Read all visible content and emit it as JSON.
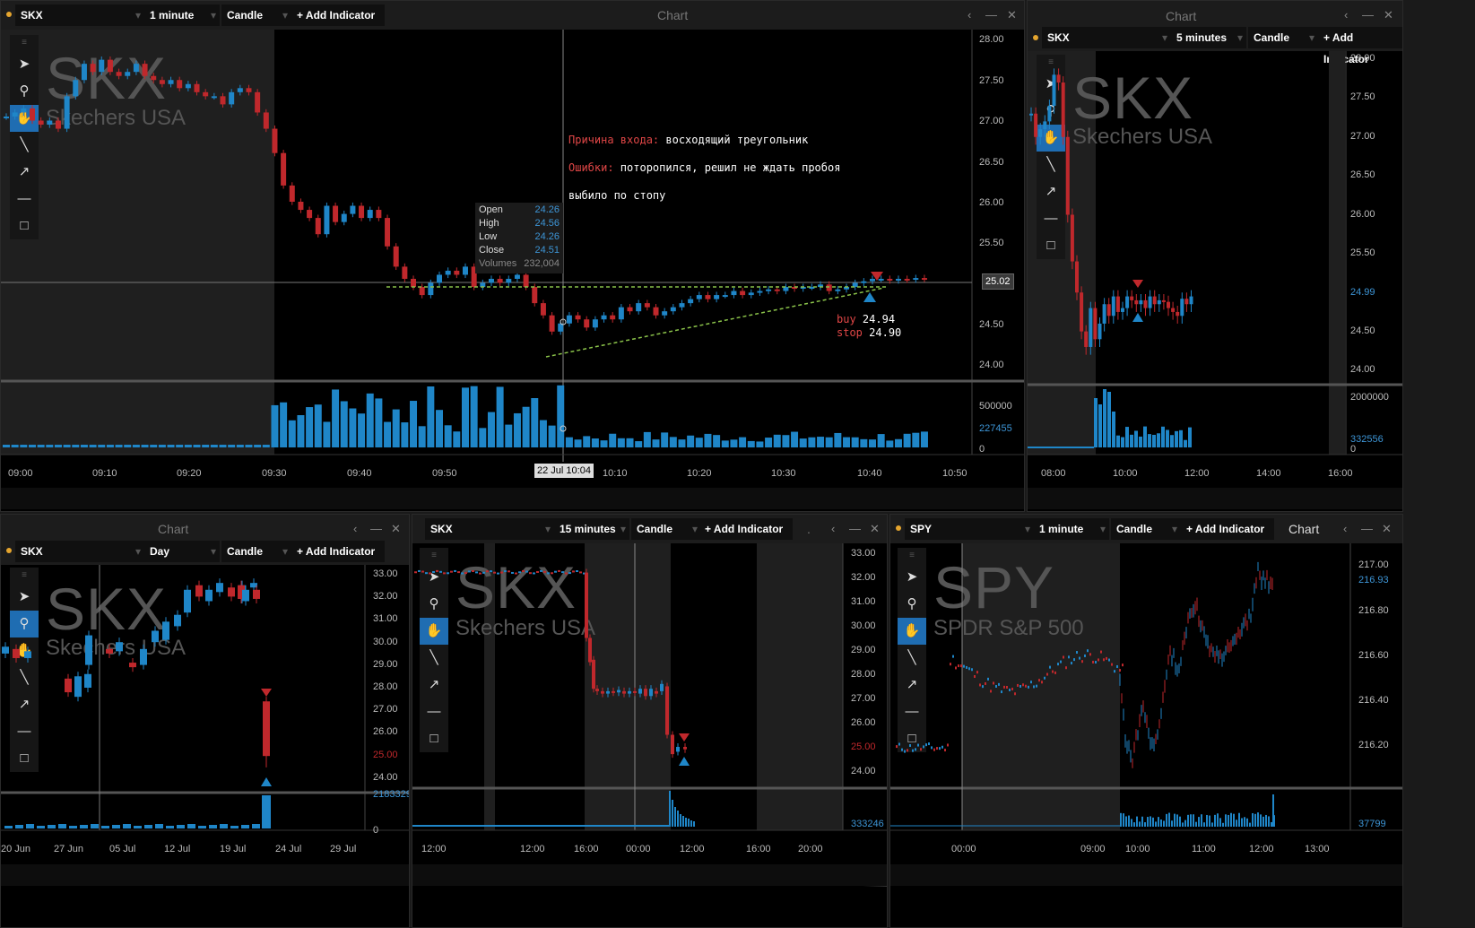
{
  "colors": {
    "up": "#1f86c8",
    "down": "#c0282c",
    "volume": "#1f86c8",
    "accent": "#1f6db2"
  },
  "tools": [
    "grip-icon",
    "pointer-icon",
    "zoom-icon",
    "hand-icon",
    "line-icon",
    "arrow-icon",
    "hline-icon",
    "rect-icon"
  ],
  "p1": {
    "symbol": "SKX",
    "timeframe": "1 minute",
    "chart_type": "Candle",
    "add_indicator": "+ Add Indicator",
    "title": "Chart",
    "ctl": [
      "‹",
      "—",
      "✕"
    ],
    "big_symbol": "SKX",
    "big_name": "Skechers USA",
    "y_labels": [
      "28.00",
      "27.50",
      "27.00",
      "26.50",
      "26.00",
      "25.50",
      "25.00",
      "24.50",
      "24.00"
    ],
    "price_tag": "25.02",
    "vol_labels": [
      "500000",
      "227455",
      "0"
    ],
    "x_labels": [
      "09:00",
      "09:10",
      "09:20",
      "09:30",
      "09:40",
      "09:50",
      "10:00",
      "10:10",
      "10:20",
      "10:30",
      "10:40",
      "10:50"
    ],
    "crosshair_label": "22 Jul 10:04",
    "ohlc": {
      "open_label": "Open",
      "open": "24.26",
      "high_label": "High",
      "high": "24.56",
      "low_label": "Low",
      "low": "24.26",
      "close_label": "Close",
      "close": "24.51",
      "vol_label": "Volumes",
      "vol": "232,004"
    },
    "note": {
      "reason_key": "Причина входа:",
      "reason_val": " восходящий треугольник",
      "err_key": "Ошибки:",
      "err_val": " поторопился, решил не ждать пробоя",
      "stop_line": "выбило по стопу"
    },
    "trade": {
      "buy_label": "buy",
      "buy": "24.94",
      "stop_label": "stop",
      "stop": "24.90"
    }
  },
  "p2": {
    "symbol": "SKX",
    "timeframe": "5 minutes",
    "chart_type": "Candle",
    "add_indicator": "+ Add Indicator",
    "title": "Chart",
    "ctl": [
      "‹",
      "—",
      "✕"
    ],
    "big_symbol": "SKX",
    "big_name": "Skechers USA",
    "y_labels": [
      "28.00",
      "27.50",
      "27.00",
      "26.50",
      "26.00",
      "25.50",
      "24.99",
      "24.50",
      "24.00"
    ],
    "vol_labels": [
      "2000000",
      "332556",
      "0"
    ],
    "x_labels": [
      "08:00",
      "10:00",
      "12:00",
      "14:00",
      "16:00"
    ]
  },
  "p3": {
    "symbol": "SKX",
    "timeframe": "Day",
    "chart_type": "Candle",
    "add_indicator": "+ Add Indicator",
    "title": "Chart",
    "ctl": [
      "‹",
      "—",
      "✕"
    ],
    "big_symbol": "SKX",
    "big_name": "Skechers USA",
    "y_labels": [
      "33.00",
      "32.00",
      "31.00",
      "30.00",
      "29.00",
      "28.00",
      "27.00",
      "26.00",
      "25.00",
      "24.00"
    ],
    "vol_labels": [
      "2183329",
      "0"
    ],
    "x_labels": [
      "20 Jun",
      "27 Jun",
      "05 Jul",
      "12 Jul",
      "19 Jul",
      "24 Jul",
      "29 Jul"
    ]
  },
  "p4": {
    "symbol": "SKX",
    "timeframe": "15 minutes",
    "chart_type": "Candle",
    "add_indicator": "+ Add Indicator",
    "title": ".",
    "ctl": [
      "‹",
      "—",
      "✕"
    ],
    "big_symbol": "SKX",
    "big_name": "Skechers USA",
    "y_labels": [
      "33.00",
      "32.00",
      "31.00",
      "30.00",
      "29.00",
      "28.00",
      "27.00",
      "26.00",
      "25.00",
      "24.00"
    ],
    "vol_labels": [
      "333246"
    ],
    "x_labels": [
      "12:00",
      "12:00",
      "16:00",
      "00:00",
      "12:00",
      "16:00",
      "20:00"
    ]
  },
  "p5": {
    "symbol": "SPY",
    "timeframe": "1 minute",
    "chart_type": "Candle",
    "add_indicator": "+ Add Indicator",
    "title": "Chart",
    "ctl": [
      "‹",
      "—",
      "✕"
    ],
    "big_symbol": "SPY",
    "big_name": "SPDR S&P 500",
    "y_labels": [
      "217.00",
      "216.93",
      "216.80",
      "216.60",
      "216.40",
      "216.20"
    ],
    "vol_labels": [
      "37799"
    ],
    "x_labels": [
      "00:00",
      "09:00",
      "10:00",
      "11:00",
      "12:00",
      "13:00"
    ]
  }
}
